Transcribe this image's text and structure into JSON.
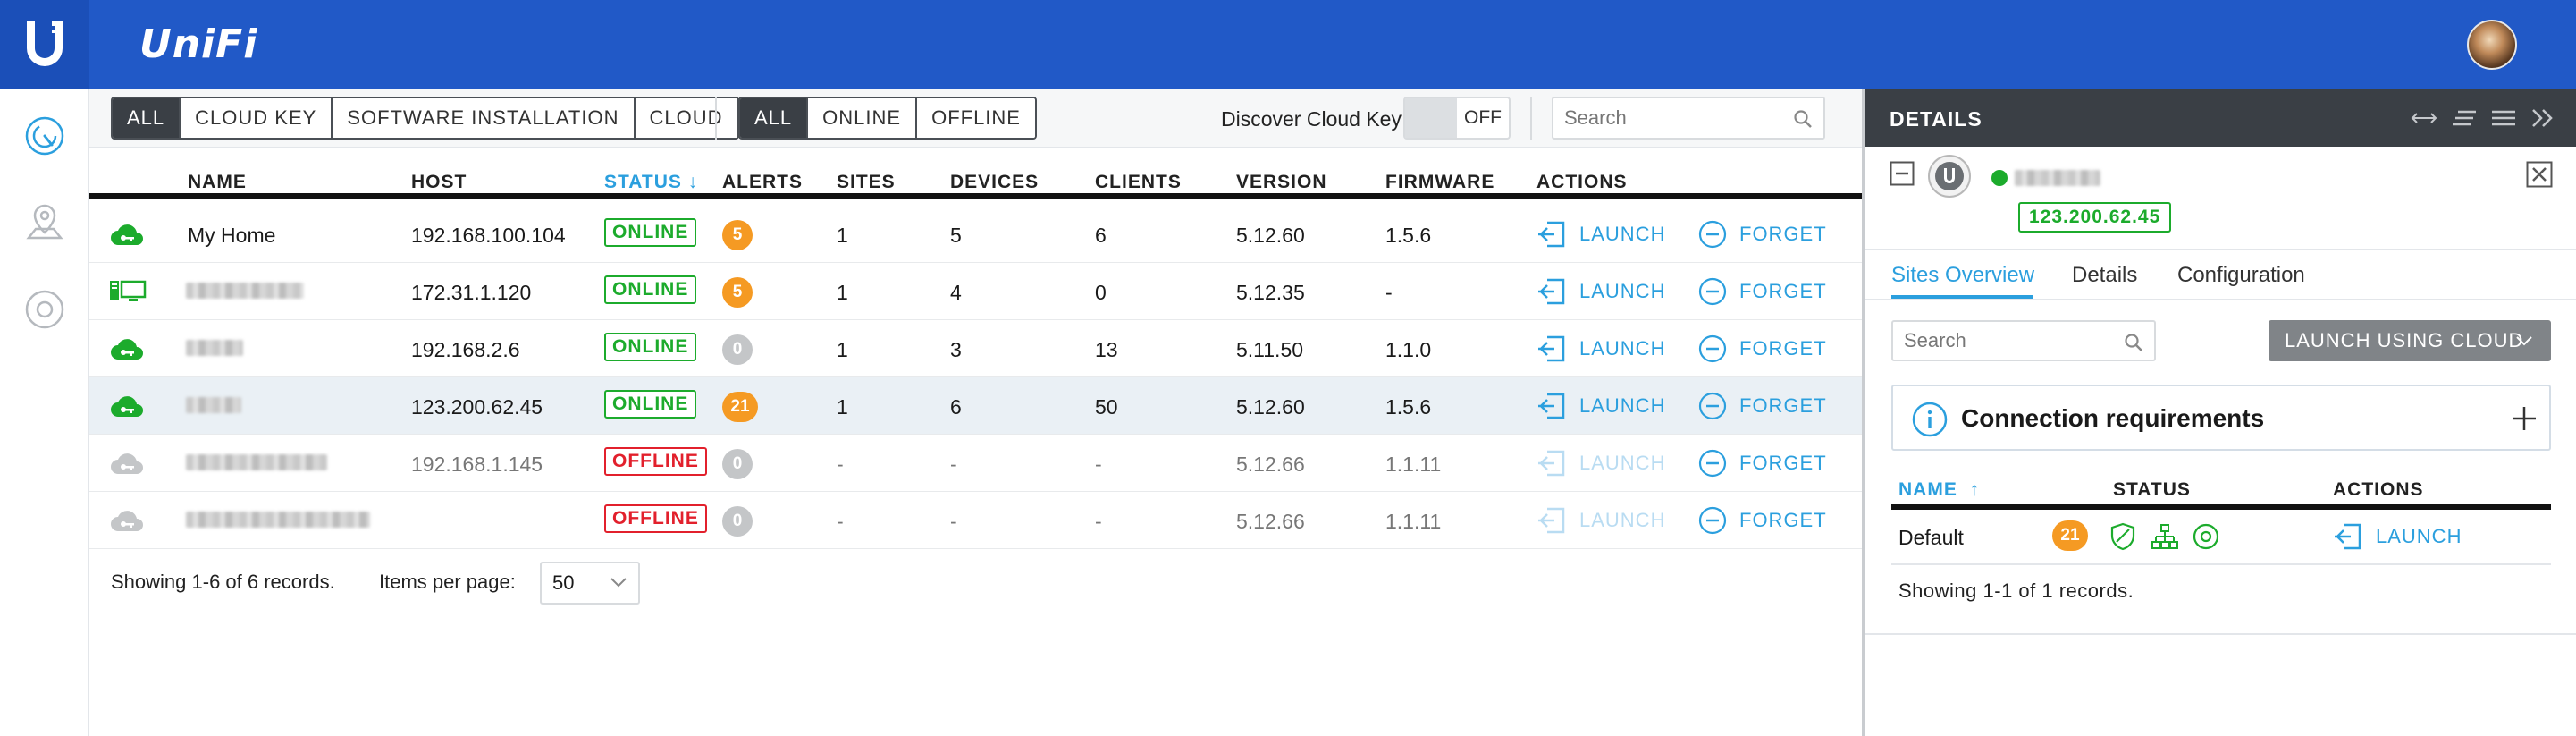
{
  "app": {
    "brand": "UniFi",
    "logo_letter": "U"
  },
  "sidebar": {
    "items": [
      {
        "icon": "dashboard-gauge-icon"
      },
      {
        "icon": "map-pin-icon"
      },
      {
        "icon": "target-icon"
      }
    ]
  },
  "filters": {
    "type": [
      "ALL",
      "CLOUD KEY",
      "SOFTWARE INSTALLATION",
      "CLOUD"
    ],
    "status": [
      "ALL",
      "ONLINE",
      "OFFLINE"
    ],
    "active_type": "ALL",
    "active_status": "ALL"
  },
  "discover": {
    "label": "Discover Cloud Key",
    "toggle": "OFF"
  },
  "search": {
    "placeholder": "Search"
  },
  "table": {
    "headers": {
      "name": "NAME",
      "host": "HOST",
      "status": "STATUS",
      "alerts": "ALERTS",
      "sites": "SITES",
      "devices": "DEVICES",
      "clients": "CLIENTS",
      "version": "VERSION",
      "firmware": "FIRMWARE",
      "actions": "ACTIONS"
    },
    "sort_column": "status",
    "rows": [
      {
        "name": "My Home",
        "host": "192.168.100.104",
        "status": "ONLINE",
        "alerts": "5",
        "sites": "1",
        "devices": "5",
        "clients": "6",
        "version": "5.12.60",
        "firmware": "1.5.6",
        "launch": "LAUNCH",
        "forget": "FORGET",
        "icon": "cloud-key-online-icon"
      },
      {
        "name": "",
        "host": "172.31.1.120",
        "status": "ONLINE",
        "alerts": "5",
        "sites": "1",
        "devices": "4",
        "clients": "0",
        "version": "5.12.35",
        "firmware": "-",
        "launch": "LAUNCH",
        "forget": "FORGET",
        "icon": "software-install-online-icon"
      },
      {
        "name": "",
        "host": "192.168.2.6",
        "status": "ONLINE",
        "alerts": "0",
        "sites": "1",
        "devices": "3",
        "clients": "13",
        "version": "5.11.50",
        "firmware": "1.1.0",
        "launch": "LAUNCH",
        "forget": "FORGET",
        "icon": "cloud-key-online-icon"
      },
      {
        "name": "",
        "host": "123.200.62.45",
        "status": "ONLINE",
        "alerts": "21",
        "sites": "1",
        "devices": "6",
        "clients": "50",
        "version": "5.12.60",
        "firmware": "1.5.6",
        "launch": "LAUNCH",
        "forget": "FORGET",
        "icon": "cloud-key-online-icon"
      },
      {
        "name": "",
        "host": "192.168.1.145",
        "status": "OFFLINE",
        "alerts": "0",
        "sites": "-",
        "devices": "-",
        "clients": "-",
        "version": "5.12.66",
        "firmware": "1.1.11",
        "launch": "LAUNCH",
        "forget": "FORGET",
        "icon": "cloud-key-offline-icon"
      },
      {
        "name": "",
        "host": "",
        "status": "OFFLINE",
        "alerts": "0",
        "sites": "-",
        "devices": "-",
        "clients": "-",
        "version": "5.12.66",
        "firmware": "1.1.11",
        "launch": "LAUNCH",
        "forget": "FORGET",
        "icon": "cloud-key-offline-icon"
      }
    ]
  },
  "footer": {
    "showing": "Showing 1-6 of 6 records.",
    "items_per_page_label": "Items per page:",
    "items_per_page": "50"
  },
  "details": {
    "title": "DETAILS",
    "device_ip": "123.200.62.45",
    "tabs": [
      "Sites Overview",
      "Details",
      "Configuration"
    ],
    "active_tab": "Sites Overview",
    "search_placeholder": "Search",
    "launch_cloud": "LAUNCH USING CLOUD",
    "connection_title": "Connection requirements",
    "headers": {
      "name": "NAME",
      "status": "STATUS",
      "actions": "ACTIONS"
    },
    "sites": [
      {
        "name": "Default",
        "alerts": "21",
        "launch": "LAUNCH"
      }
    ],
    "showing": "Showing 1-1 of 1 records."
  },
  "colors": {
    "topbar": "#2159c7",
    "accent": "#2b9fde",
    "online": "#1cab2c",
    "offline": "#e2202c",
    "alert": "#f59a23",
    "dark": "#3a3f45"
  }
}
